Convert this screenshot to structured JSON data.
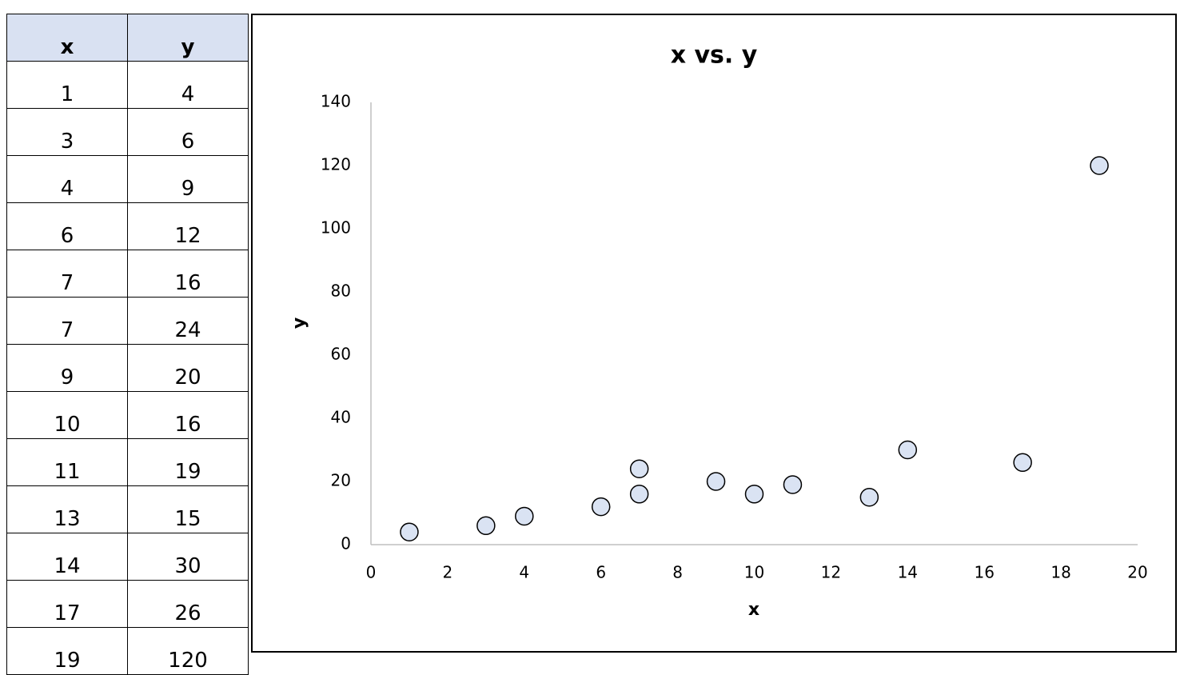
{
  "table": {
    "columns": [
      "x",
      "y"
    ]
  },
  "chart_data": {
    "type": "scatter",
    "title": "x vs. y",
    "x_label": "x",
    "y_label": "y",
    "x": [
      1,
      3,
      4,
      6,
      7,
      7,
      9,
      10,
      11,
      13,
      14,
      17,
      19
    ],
    "series": [
      {
        "color": "#dae3f3",
        "values": [
          4,
          6,
          9,
          12,
          16,
          24,
          20,
          16,
          19,
          15,
          30,
          26,
          120
        ]
      }
    ],
    "xlim": [
      0,
      20
    ],
    "xticks": [
      0,
      2,
      4,
      6,
      8,
      10,
      12,
      14,
      16,
      18,
      20
    ],
    "ylim": [
      0,
      140
    ],
    "yticks": [
      0,
      20,
      40,
      60,
      80,
      100,
      120,
      140
    ],
    "grid": false
  }
}
